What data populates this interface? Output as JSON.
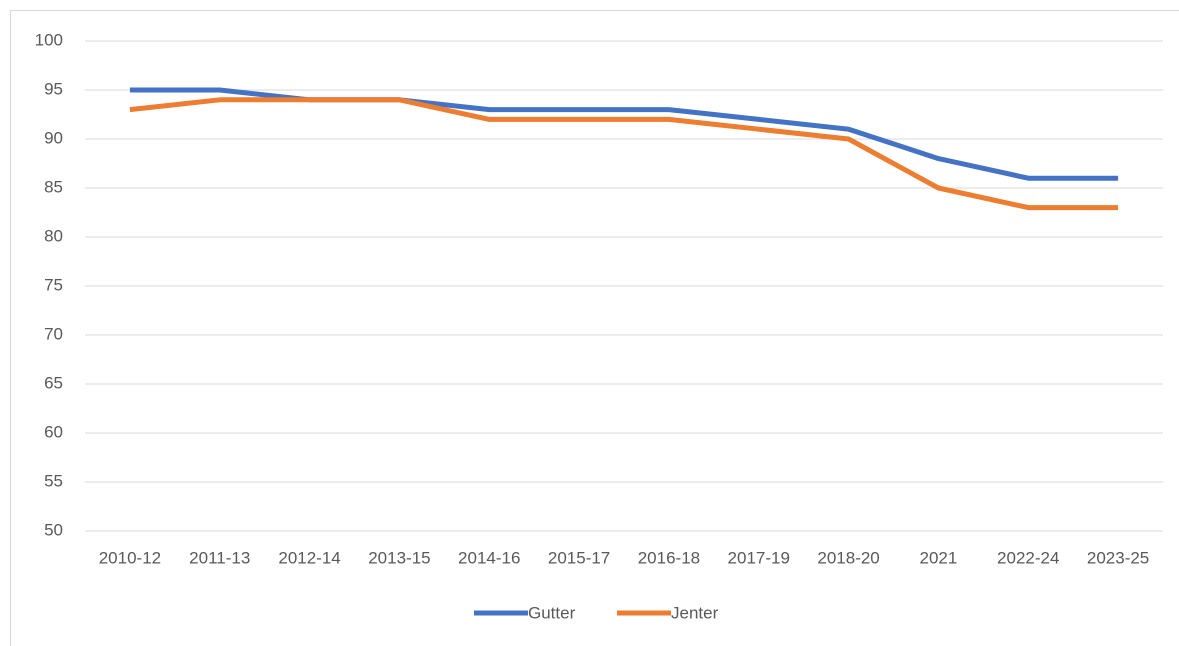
{
  "chart_data": {
    "type": "line",
    "categories": [
      "2010-12",
      "2011-13",
      "2012-14",
      "2013-15",
      "2014-16",
      "2015-17",
      "2016-18",
      "2017-19",
      "2018-20",
      "2021",
      "2022-24",
      "2023-25"
    ],
    "series": [
      {
        "name": "Gutter",
        "color": "#4472c4",
        "values": [
          95,
          95,
          94,
          94,
          93,
          93,
          93,
          92,
          91,
          88,
          86,
          86
        ]
      },
      {
        "name": "Jenter",
        "color": "#ed7d31",
        "values": [
          93,
          94,
          94,
          94,
          92,
          92,
          92,
          91,
          90,
          85,
          83,
          83
        ]
      }
    ],
    "ylim": [
      50,
      100
    ],
    "yticks": [
      50,
      55,
      60,
      65,
      70,
      75,
      80,
      85,
      90,
      95,
      100
    ],
    "grid": true,
    "legend": "bottom"
  }
}
